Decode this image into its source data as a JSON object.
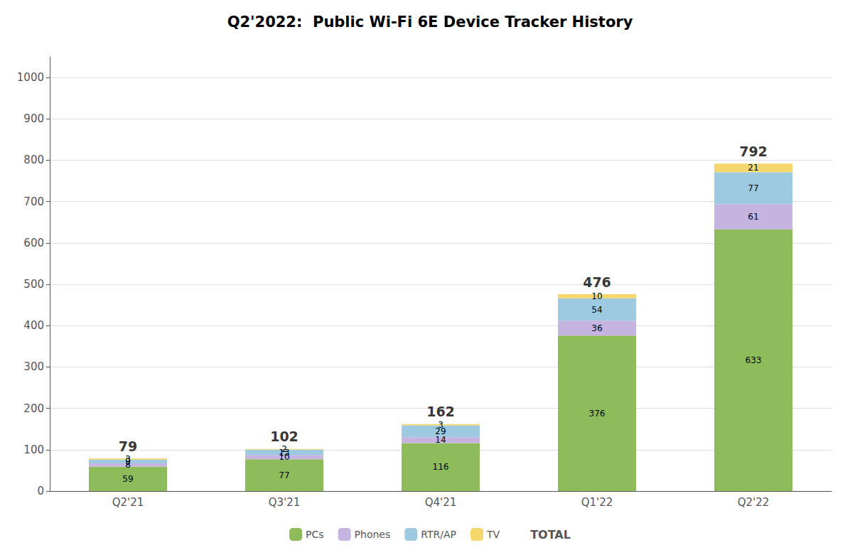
{
  "chart_data": {
    "type": "bar",
    "title": "Q2'2022:  Public Wi-Fi 6E Device Tracker History",
    "categories": [
      "Q2'21",
      "Q3'21",
      "Q4'21",
      "Q1'22",
      "Q2'22"
    ],
    "series": [
      {
        "name": "PCs",
        "color": "#8fbc5a",
        "values": [
          59,
          77,
          116,
          376,
          633
        ]
      },
      {
        "name": "Phones",
        "color": "#c5b3e0",
        "values": [
          8,
          10,
          14,
          36,
          61
        ]
      },
      {
        "name": "RTR/AP",
        "color": "#9ecae1",
        "values": [
          9,
          13,
          29,
          54,
          77
        ]
      },
      {
        "name": "TV",
        "color": "#f5d76e",
        "values": [
          3,
          2,
          3,
          10,
          21
        ]
      }
    ],
    "totals": [
      79,
      102,
      162,
      476,
      792
    ],
    "totals_label": "TOTAL",
    "stacked": true,
    "data_labels": true,
    "ylim": [
      0,
      1050
    ],
    "yticks": [
      0,
      100,
      200,
      300,
      400,
      500,
      600,
      700,
      800,
      900,
      1000
    ],
    "grid": true,
    "legend": "bottom"
  }
}
